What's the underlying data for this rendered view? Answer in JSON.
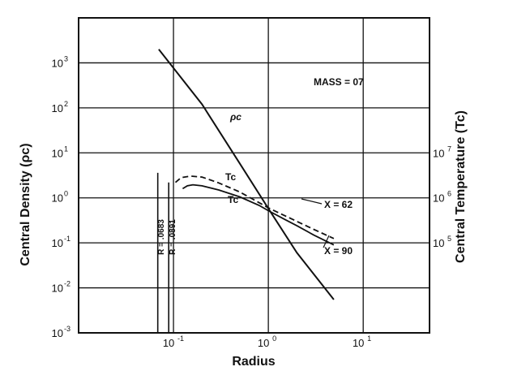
{
  "chart_data": {
    "type": "line",
    "title": "",
    "xlabel": "Radius",
    "ylabel": "Central Density (ρc)",
    "ylabel_right": "Central Temperature (Tc)",
    "x_scale": "log",
    "y_scale": "log",
    "xlim": [
      0.01,
      50
    ],
    "ylim": [
      0.001,
      10000
    ],
    "grid": true,
    "x_ticks": [
      {
        "base": "10",
        "exp": "-1",
        "value": 0.1
      },
      {
        "base": "10",
        "exp": "0",
        "value": 1
      },
      {
        "base": "10",
        "exp": "1",
        "value": 10
      }
    ],
    "y_ticks_left": [
      {
        "base": "10",
        "exp": "-3",
        "value": 0.001
      },
      {
        "base": "10",
        "exp": "-2",
        "value": 0.01
      },
      {
        "base": "10",
        "exp": "-1",
        "value": 0.1
      },
      {
        "base": "10",
        "exp": "0",
        "value": 1
      },
      {
        "base": "10",
        "exp": "1",
        "value": 10
      },
      {
        "base": "10",
        "exp": "2",
        "value": 100
      },
      {
        "base": "10",
        "exp": "3",
        "value": 1000
      }
    ],
    "y_ticks_right": [
      {
        "base": "10",
        "exp": "5",
        "at_left_value": 0.1
      },
      {
        "base": "10",
        "exp": "6",
        "at_left_value": 1
      },
      {
        "base": "10",
        "exp": "7",
        "at_left_value": 10
      }
    ],
    "series": [
      {
        "name": "ρc",
        "style": "solid",
        "x": [
          0.07,
          0.2,
          0.5,
          1.0,
          2.0,
          4.9
        ],
        "y": [
          2000,
          120,
          5.8,
          0.58,
          0.06,
          0.0055
        ]
      },
      {
        "name": "Tc",
        "note": "X = 62",
        "style": "dashed",
        "x": [
          0.105,
          0.12,
          0.15,
          0.2,
          0.3,
          0.5,
          0.8,
          1.0,
          1.5,
          2.0,
          3.0,
          4.9
        ],
        "y": [
          2.2,
          2.8,
          3.05,
          2.9,
          2.15,
          1.35,
          0.78,
          0.6,
          0.4,
          0.3,
          0.2,
          0.125
        ]
      },
      {
        "name": "Tc",
        "note": "X = 90",
        "style": "solid",
        "x": [
          0.125,
          0.14,
          0.16,
          0.2,
          0.3,
          0.5,
          0.8,
          1.0,
          1.5,
          2.0,
          3.0,
          4.9
        ],
        "y": [
          1.6,
          1.85,
          1.95,
          1.85,
          1.5,
          1.05,
          0.68,
          0.52,
          0.33,
          0.24,
          0.15,
          0.09
        ]
      }
    ],
    "verticals": [
      {
        "label": "R = .0683",
        "x": 0.0683,
        "y_top": 3.6
      },
      {
        "label": "R = .0891",
        "x": 0.0891,
        "y_top": 2.2
      }
    ],
    "annotations": {
      "mass": "MASS = 07",
      "rho_label": "ρc",
      "tc_upper": "Tc",
      "tc_lower": "Tc",
      "x62": "X = 62",
      "x90": "X = 90"
    }
  }
}
